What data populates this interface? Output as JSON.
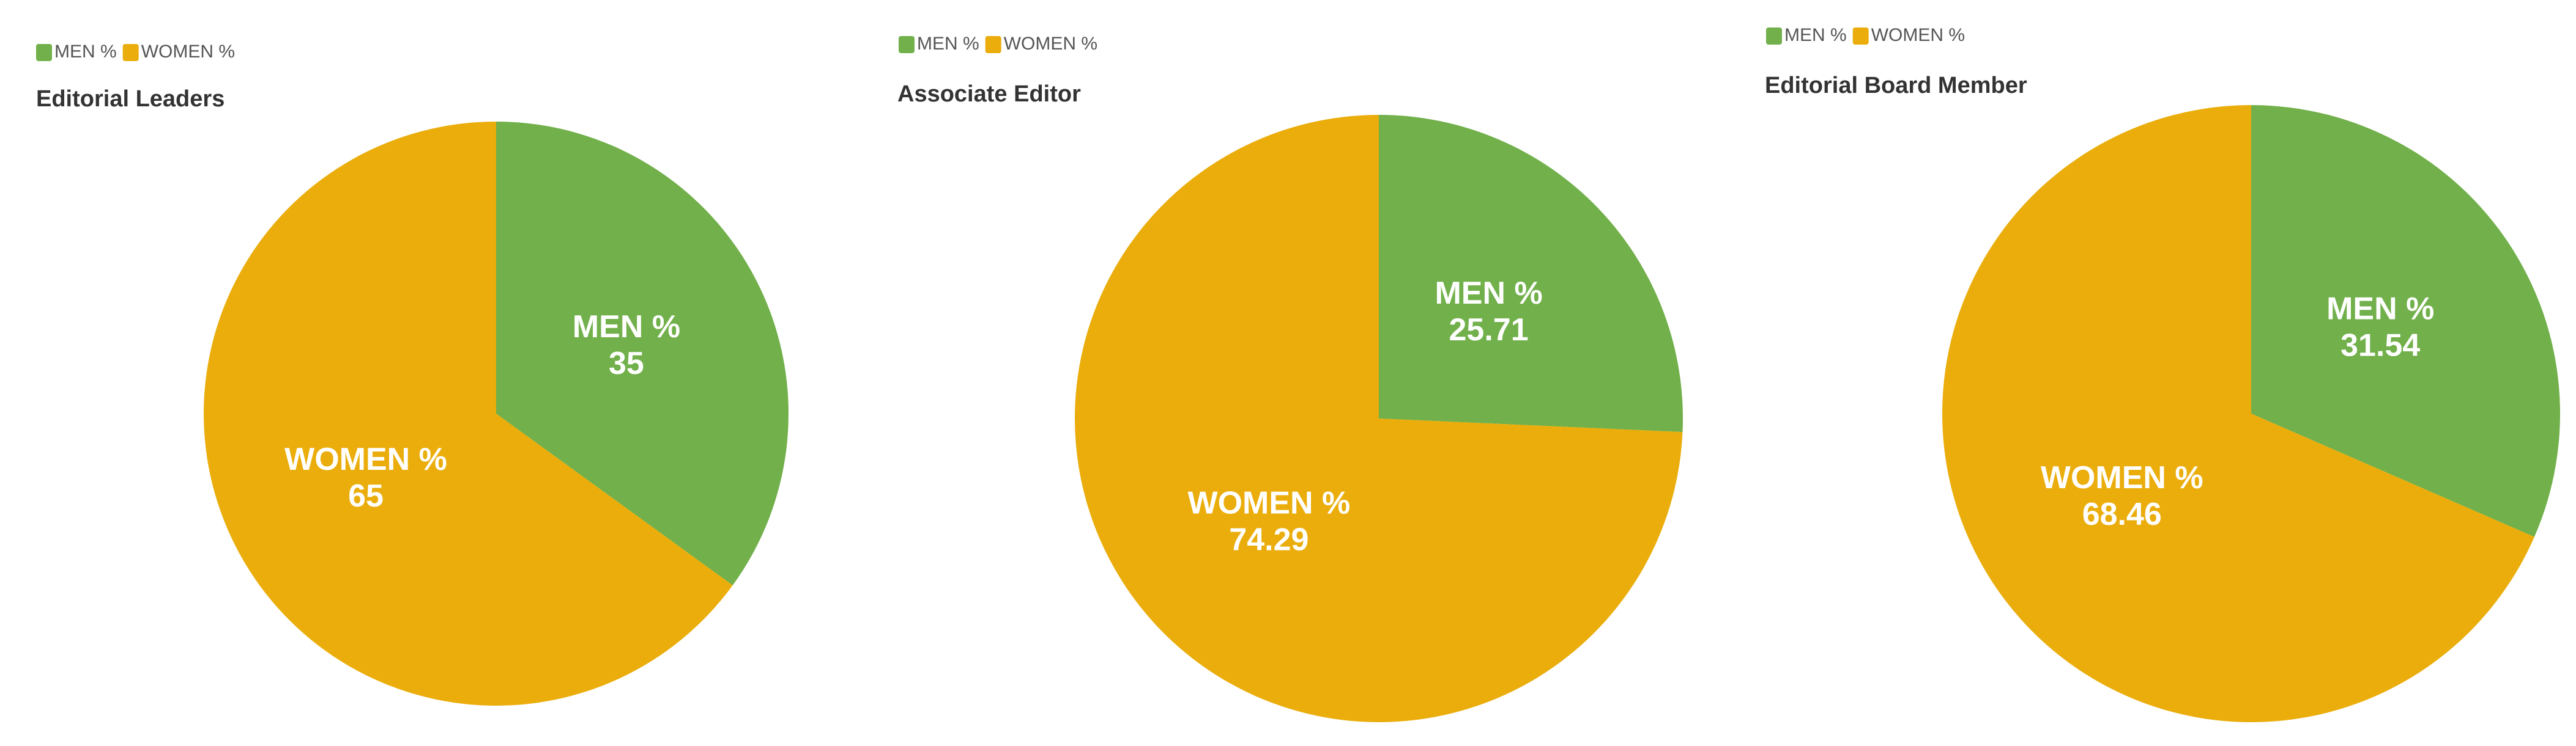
{
  "chart_data": [
    {
      "type": "pie",
      "title": "Editorial Leaders",
      "categories": [
        "MEN %",
        "WOMEN %"
      ],
      "values": [
        35,
        65
      ],
      "colors": [
        "#71b04a",
        "#eaad0b"
      ]
    },
    {
      "type": "pie",
      "title": "Associate Editor",
      "categories": [
        "MEN %",
        "WOMEN %"
      ],
      "values": [
        25.71,
        74.29
      ],
      "colors": [
        "#71b04a",
        "#eaad0b"
      ]
    },
    {
      "type": "pie",
      "title": "Editorial Board Member",
      "categories": [
        "MEN %",
        "WOMEN %"
      ],
      "values": [
        31.54,
        68.46
      ],
      "colors": [
        "#71b04a",
        "#eaad0b"
      ]
    }
  ]
}
